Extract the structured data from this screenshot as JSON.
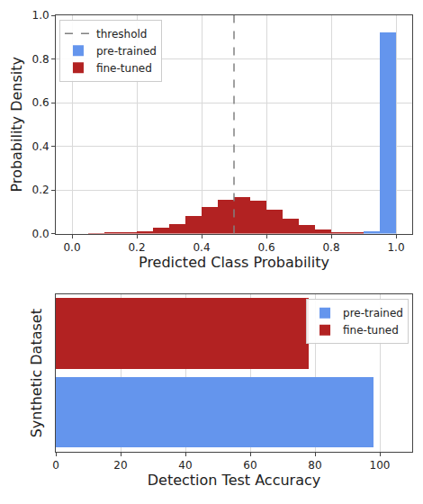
{
  "chart_data": [
    {
      "type": "histogram",
      "x_label": "Predicted Class Probability",
      "y_label": "Probability Density",
      "bins": [
        0,
        0.05,
        0.1,
        0.15,
        0.2,
        0.25,
        0.3,
        0.35,
        0.4,
        0.45,
        0.5,
        0.55,
        0.6,
        0.65,
        0.7,
        0.75,
        0.8,
        0.85,
        0.9,
        0.95,
        1.0
      ],
      "series": [
        {
          "name": "threshold",
          "type": "vline",
          "x": 0.5,
          "color": "#808080",
          "line_style": "dashed"
        },
        {
          "name": "pre-trained",
          "color": "#6495ed",
          "values": [
            0,
            0,
            0,
            0,
            0,
            0,
            0,
            0,
            0,
            0,
            0,
            0,
            0,
            0,
            0,
            0,
            0,
            0,
            0.01,
            0.92
          ]
        },
        {
          "name": "fine-tuned",
          "color": "#b22222",
          "values": [
            0,
            0.002,
            0.003,
            0.006,
            0.012,
            0.025,
            0.045,
            0.08,
            0.12,
            0.155,
            0.165,
            0.15,
            0.11,
            0.07,
            0.04,
            0.02,
            0.008,
            0.003,
            0,
            0
          ]
        }
      ],
      "xlim": [
        -0.05,
        1.05
      ],
      "xticks": [
        {
          "value": 0,
          "label": "0.0"
        },
        0.2,
        0.4,
        0.6,
        0.8,
        {
          "value": 1,
          "label": "1.0"
        }
      ],
      "ylim": [
        0,
        1
      ],
      "yticks": [
        {
          "value": 0,
          "label": "0.0"
        },
        0.2,
        0.4,
        0.6,
        0.8,
        {
          "value": 1,
          "label": "1.0"
        }
      ],
      "grid": true,
      "legend": "upper left"
    },
    {
      "type": "bar",
      "orientation": "horizontal",
      "x_label": "Detection Test Accuracy",
      "y_label": "Synthetic Dataset",
      "categories": [
        null,
        null
      ],
      "series": [
        {
          "name": "pre-trained",
          "color": "#6495ed",
          "values": [
            98,
            null
          ]
        },
        {
          "name": "fine-tuned",
          "color": "#b22222",
          "values": [
            null,
            78
          ]
        }
      ],
      "xlim": [
        0,
        110
      ],
      "xticks": [
        0,
        20,
        40,
        60,
        80,
        100
      ],
      "grid": true,
      "legend": "upper right",
      "tick_labels": "x"
    }
  ]
}
